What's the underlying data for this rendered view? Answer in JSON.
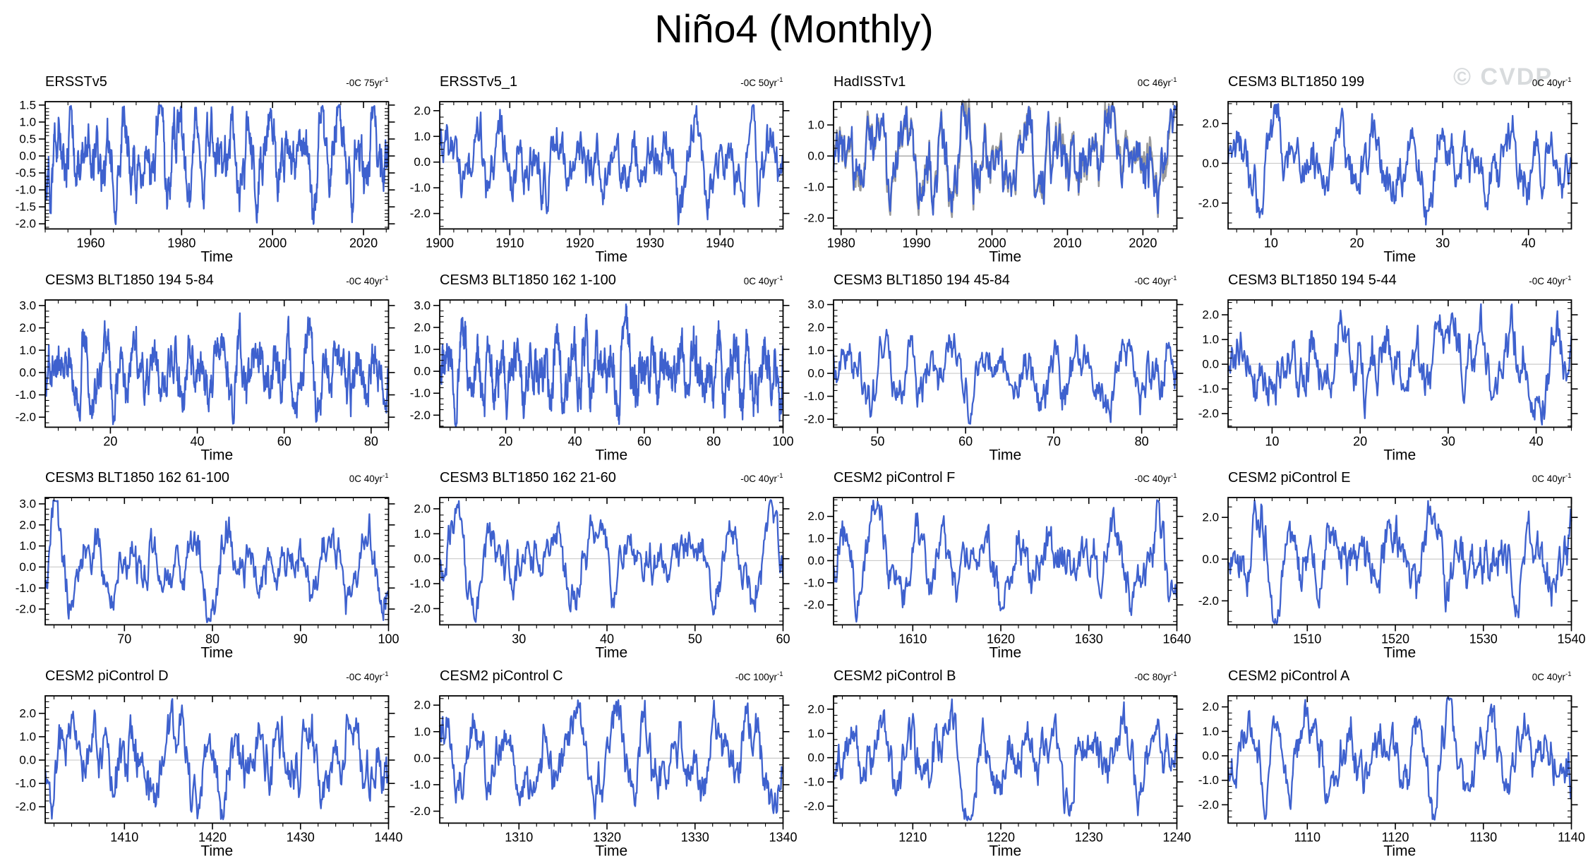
{
  "page_title": "Niño4 (Monthly)",
  "watermark": "© CVDP",
  "xlabel": "Time",
  "colors": {
    "line": "#3e61ce",
    "overlay_line": "#9a9a9a",
    "zero_line": "#cbcbcb",
    "zero_line_strong": "#8f8f8f",
    "axis": "#000000",
    "watermark": "#d8dbdd"
  },
  "chart_data": [
    {
      "type": "line",
      "title": "ERSSTv5",
      "rate": "-0C 75yr",
      "rate_sup": "-1",
      "xlabel": "Time",
      "xlim": [
        1950,
        2025.5
      ],
      "xticks": [
        1960,
        1980,
        2000,
        2020
      ],
      "x_minor_step": 5,
      "ylim": [
        -2.15,
        1.6
      ],
      "yticks": [
        1.5,
        1.0,
        0.5,
        0.0,
        -0.5,
        -1.0,
        -1.5,
        -2.0
      ],
      "y_minor_step": 0.1,
      "zero_line": true,
      "has_overlay": false,
      "series": {
        "synthetic": true,
        "seed": 101,
        "target_sd": 0.78,
        "points_per_year": 12
      }
    },
    {
      "type": "line",
      "title": "ERSSTv5_1",
      "rate": "-0C 50yr",
      "rate_sup": "-1",
      "xlabel": "Time",
      "xlim": [
        1900,
        1949
      ],
      "xticks": [
        1900,
        1910,
        1920,
        1930,
        1940
      ],
      "x_minor_step": 2,
      "ylim": [
        -2.6,
        2.35
      ],
      "yticks": [
        2.0,
        1.0,
        0.0,
        -1.0,
        -2.0
      ],
      "y_minor_step": 0.25,
      "zero_line": true,
      "has_overlay": false,
      "series": {
        "synthetic": true,
        "seed": 202,
        "target_sd": 0.82,
        "points_per_year": 12
      }
    },
    {
      "type": "line",
      "title": "HadISSTv1",
      "rate": "0C 46yr",
      "rate_sup": "-1",
      "xlabel": "Time",
      "xlim": [
        1979,
        2024.5
      ],
      "xticks": [
        1980,
        1990,
        2000,
        2010,
        2020
      ],
      "x_minor_step": 2,
      "ylim": [
        -2.35,
        1.75
      ],
      "yticks": [
        1.0,
        0.0,
        -1.0,
        -2.0
      ],
      "y_minor_step": 0.25,
      "zero_line": true,
      "zero_strong": true,
      "has_overlay": true,
      "series": {
        "synthetic": true,
        "seed": 303,
        "target_sd": 0.8,
        "points_per_year": 12
      }
    },
    {
      "type": "line",
      "title": "CESM3 BLT1850 199",
      "rate": "0C 40yr",
      "rate_sup": "-1",
      "xlabel": "Time",
      "xlim": [
        5,
        45
      ],
      "xticks": [
        10,
        20,
        30,
        40
      ],
      "x_minor_step": 2,
      "ylim": [
        -3.3,
        3.1
      ],
      "yticks": [
        2.0,
        0.0,
        -2.0
      ],
      "y_minor_step": 0.5,
      "zero_line": true,
      "has_overlay": false,
      "series": {
        "synthetic": true,
        "seed": 404,
        "target_sd": 1.15,
        "points_per_year": 12
      }
    },
    {
      "type": "line",
      "title": "CESM3 BLT1850 194 5-84",
      "rate": "-0C 40yr",
      "rate_sup": "-1",
      "xlabel": "Time",
      "xlim": [
        5,
        84
      ],
      "xticks": [
        20,
        40,
        60,
        80
      ],
      "x_minor_step": 4,
      "ylim": [
        -2.45,
        3.25
      ],
      "yticks": [
        3.0,
        2.0,
        1.0,
        0.0,
        -1.0,
        -2.0
      ],
      "y_minor_step": 0.25,
      "zero_line": true,
      "has_overlay": false,
      "series": {
        "synthetic": true,
        "seed": 505,
        "target_sd": 0.95,
        "points_per_year": 12
      }
    },
    {
      "type": "line",
      "title": "CESM3 BLT1850 162 1-100",
      "rate": "0C 40yr",
      "rate_sup": "-1",
      "xlabel": "Time",
      "xlim": [
        1,
        100
      ],
      "xticks": [
        20,
        40,
        60,
        80,
        100
      ],
      "x_minor_step": 4,
      "ylim": [
        -2.55,
        3.25
      ],
      "yticks": [
        3.0,
        2.0,
        1.0,
        0.0,
        -1.0,
        -2.0
      ],
      "y_minor_step": 0.25,
      "zero_line": true,
      "has_overlay": false,
      "series": {
        "synthetic": true,
        "seed": 606,
        "target_sd": 1.0,
        "points_per_year": 12
      }
    },
    {
      "type": "line",
      "title": "CESM3 BLT1850 194 45-84",
      "rate": "-0C 40yr",
      "rate_sup": "-1",
      "xlabel": "Time",
      "xlim": [
        45,
        84
      ],
      "xticks": [
        50,
        60,
        70,
        80
      ],
      "x_minor_step": 2,
      "ylim": [
        -2.35,
        3.2
      ],
      "yticks": [
        3.0,
        2.0,
        1.0,
        0.0,
        -1.0,
        -2.0
      ],
      "y_minor_step": 0.25,
      "zero_line": true,
      "has_overlay": false,
      "series": {
        "synthetic": true,
        "seed": 707,
        "target_sd": 0.85,
        "points_per_year": 12
      }
    },
    {
      "type": "line",
      "title": "CESM3 BLT1850 194 5-44",
      "rate": "-0C 40yr",
      "rate_sup": "-1",
      "xlabel": "Time",
      "xlim": [
        5,
        44
      ],
      "xticks": [
        10,
        20,
        30,
        40
      ],
      "x_minor_step": 2,
      "ylim": [
        -2.55,
        2.6
      ],
      "yticks": [
        2.0,
        1.0,
        0.0,
        -1.0,
        -2.0
      ],
      "y_minor_step": 0.25,
      "zero_line": true,
      "has_overlay": false,
      "series": {
        "synthetic": true,
        "seed": 808,
        "target_sd": 0.95,
        "points_per_year": 12
      }
    },
    {
      "type": "line",
      "title": "CESM3 BLT1850 162 61-100",
      "rate": "0C 40yr",
      "rate_sup": "-1",
      "xlabel": "Time",
      "xlim": [
        61,
        100
      ],
      "xticks": [
        70,
        80,
        90,
        100
      ],
      "x_minor_step": 2,
      "ylim": [
        -2.75,
        3.3
      ],
      "yticks": [
        3.0,
        2.0,
        1.0,
        0.0,
        -1.0,
        -2.0
      ],
      "y_minor_step": 0.25,
      "zero_line": true,
      "has_overlay": false,
      "series": {
        "synthetic": true,
        "seed": 909,
        "target_sd": 1.1,
        "points_per_year": 12
      }
    },
    {
      "type": "line",
      "title": "CESM3 BLT1850 162 21-60",
      "rate": "-0C 40yr",
      "rate_sup": "-1",
      "xlabel": "Time",
      "xlim": [
        21,
        60
      ],
      "xticks": [
        30,
        40,
        50,
        60
      ],
      "x_minor_step": 2,
      "ylim": [
        -2.65,
        2.45
      ],
      "yticks": [
        2.0,
        1.0,
        0.0,
        -1.0,
        -2.0
      ],
      "y_minor_step": 0.25,
      "zero_line": true,
      "has_overlay": false,
      "series": {
        "synthetic": true,
        "seed": 1010,
        "target_sd": 1.0,
        "points_per_year": 12
      }
    },
    {
      "type": "line",
      "title": "CESM2 piControl F",
      "rate": "-0C 40yr",
      "rate_sup": "-1",
      "xlabel": "Time",
      "xlim": [
        1601,
        1640
      ],
      "xticks": [
        1610,
        1620,
        1630,
        1640
      ],
      "x_minor_step": 2,
      "ylim": [
        -2.9,
        2.85
      ],
      "yticks": [
        2.0,
        1.0,
        0.0,
        -1.0,
        -2.0
      ],
      "y_minor_step": 0.25,
      "zero_line": true,
      "has_overlay": false,
      "series": {
        "synthetic": true,
        "seed": 1111,
        "target_sd": 1.1,
        "points_per_year": 12
      }
    },
    {
      "type": "line",
      "title": "CESM2 piControl E",
      "rate": "0C 40yr",
      "rate_sup": "-1",
      "xlabel": "Time",
      "xlim": [
        1501,
        1540
      ],
      "xticks": [
        1510,
        1520,
        1530,
        1540
      ],
      "x_minor_step": 2,
      "ylim": [
        -3.15,
        2.95
      ],
      "yticks": [
        2.0,
        0.0,
        -2.0
      ],
      "y_minor_step": 0.5,
      "zero_line": true,
      "has_overlay": false,
      "series": {
        "synthetic": true,
        "seed": 1212,
        "target_sd": 1.15,
        "points_per_year": 12
      }
    },
    {
      "type": "line",
      "title": "CESM2 piControl D",
      "rate": "-0C 40yr",
      "rate_sup": "-1",
      "xlabel": "Time",
      "xlim": [
        1401,
        1440
      ],
      "xticks": [
        1410,
        1420,
        1430,
        1440
      ],
      "x_minor_step": 2,
      "ylim": [
        -2.7,
        2.75
      ],
      "yticks": [
        2.0,
        1.0,
        0.0,
        -1.0,
        -2.0
      ],
      "y_minor_step": 0.25,
      "zero_line": true,
      "has_overlay": false,
      "series": {
        "synthetic": true,
        "seed": 1313,
        "target_sd": 1.05,
        "points_per_year": 12
      }
    },
    {
      "type": "line",
      "title": "CESM2 piControl C",
      "rate": "-0C 100yr",
      "rate_sup": "-1",
      "xlabel": "Time",
      "xlim": [
        1301,
        1340
      ],
      "xticks": [
        1310,
        1320,
        1330,
        1340
      ],
      "x_minor_step": 2,
      "ylim": [
        -2.45,
        2.35
      ],
      "yticks": [
        2.0,
        1.0,
        0.0,
        -1.0,
        -2.0
      ],
      "y_minor_step": 0.25,
      "zero_line": true,
      "has_overlay": false,
      "series": {
        "synthetic": true,
        "seed": 1414,
        "target_sd": 1.0,
        "points_per_year": 12
      }
    },
    {
      "type": "line",
      "title": "CESM2 piControl B",
      "rate": "-0C 80yr",
      "rate_sup": "-1",
      "xlabel": "Time",
      "xlim": [
        1201,
        1240
      ],
      "xticks": [
        1210,
        1220,
        1230,
        1240
      ],
      "x_minor_step": 2,
      "ylim": [
        -2.7,
        2.55
      ],
      "yticks": [
        2.0,
        1.0,
        0.0,
        -1.0,
        -2.0
      ],
      "y_minor_step": 0.25,
      "zero_line": true,
      "has_overlay": false,
      "series": {
        "synthetic": true,
        "seed": 1515,
        "target_sd": 1.0,
        "points_per_year": 12
      }
    },
    {
      "type": "line",
      "title": "CESM2 piControl A",
      "rate": "0C 40yr",
      "rate_sup": "-1",
      "xlabel": "Time",
      "xlim": [
        1101,
        1140
      ],
      "xticks": [
        1110,
        1120,
        1130,
        1140
      ],
      "x_minor_step": 2,
      "ylim": [
        -2.75,
        2.45
      ],
      "yticks": [
        2.0,
        1.0,
        0.0,
        -1.0,
        -2.0
      ],
      "y_minor_step": 0.25,
      "zero_line": true,
      "has_overlay": false,
      "series": {
        "synthetic": true,
        "seed": 1616,
        "target_sd": 1.05,
        "points_per_year": 12
      }
    }
  ]
}
